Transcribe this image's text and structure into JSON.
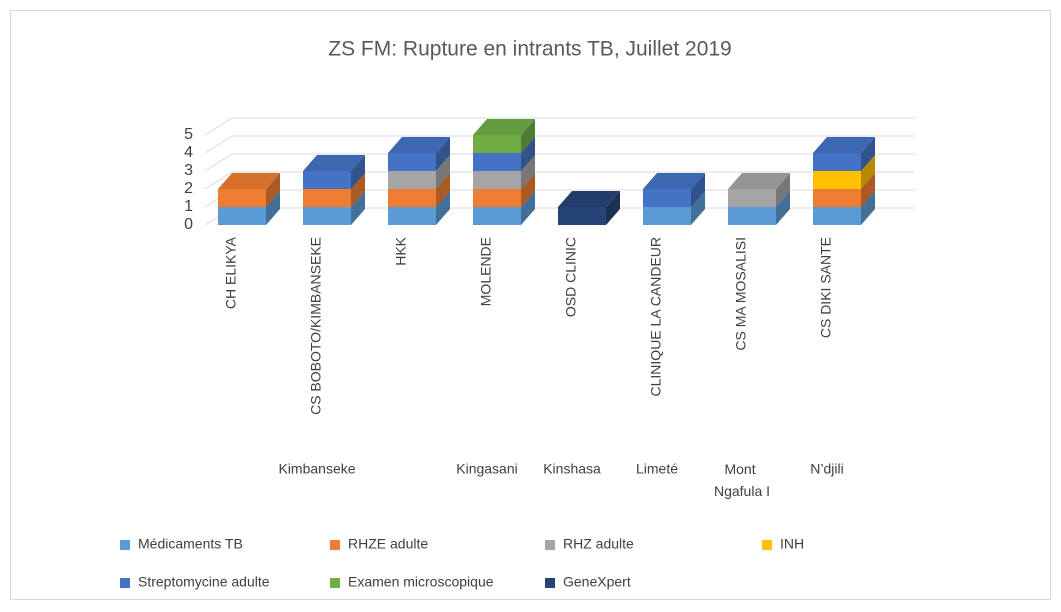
{
  "chart_data": {
    "type": "bar3d_stacked",
    "title": "ZS FM: Rupture en intrants TB, Juillet 2019",
    "categories": [
      "CH ELIKYA",
      "CS BOBOTO/KIMBANSEKE",
      "HKK",
      "MOLENDE",
      "OSD CLINIC",
      "CLINIQUE LA CANDEUR",
      "CS MA MOSALISI",
      "CS DIKI SANTE"
    ],
    "category_groups": [
      "Kimbanseke",
      "Kimbanseke",
      "Kimbanseke",
      "Kingasani",
      "Kinshasa",
      "Limeté",
      "Mont Ngafula I",
      "N’djili"
    ],
    "series": [
      {
        "name": "Médicaments TB",
        "color": "#5b9bd5",
        "values": [
          1,
          1,
          1,
          1,
          null,
          1,
          1,
          1
        ]
      },
      {
        "name": "RHZE adulte",
        "color": "#ed7d31",
        "values": [
          1,
          1,
          1,
          1,
          null,
          null,
          null,
          1
        ]
      },
      {
        "name": "RHZ adulte",
        "color": "#a5a5a5",
        "values": [
          null,
          null,
          1,
          1,
          null,
          null,
          1,
          null
        ]
      },
      {
        "name": "INH",
        "color": "#ffc000",
        "values": [
          null,
          null,
          null,
          null,
          null,
          null,
          null,
          1
        ]
      },
      {
        "name": "Streptomycine adulte",
        "color": "#4472c4",
        "values": [
          null,
          1,
          1,
          1,
          null,
          1,
          null,
          1
        ]
      },
      {
        "name": "Examen microscopique",
        "color": "#70ad47",
        "values": [
          null,
          null,
          null,
          1,
          null,
          null,
          null,
          null
        ]
      },
      {
        "name": "GeneXpert",
        "color": "#264478",
        "values": [
          null,
          null,
          null,
          null,
          1,
          null,
          null,
          null
        ]
      }
    ],
    "ylim": [
      0,
      5
    ],
    "yticks": [
      0,
      1,
      2,
      3,
      4,
      5
    ],
    "grid": true,
    "legend": "bottom"
  }
}
